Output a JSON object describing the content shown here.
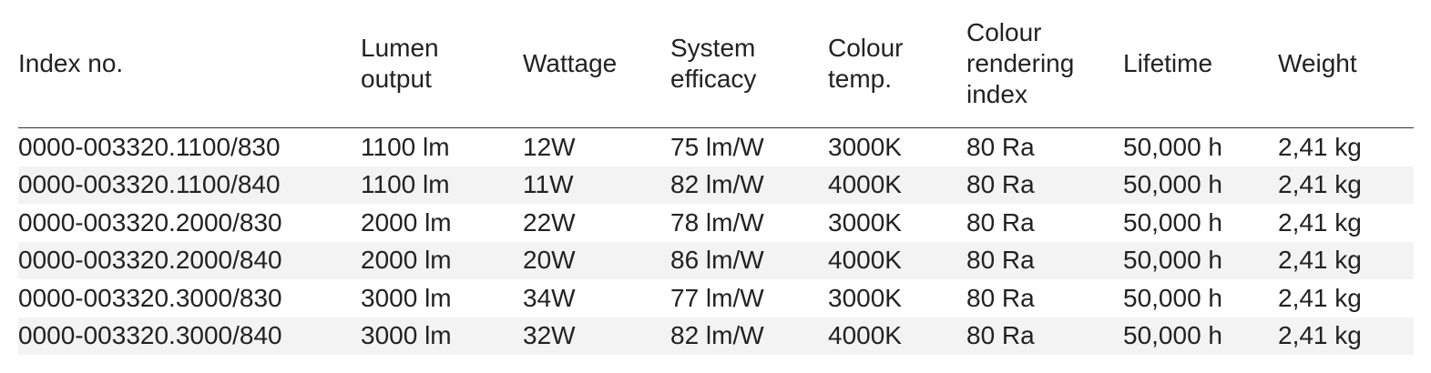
{
  "table": {
    "headers": [
      [
        "Index no."
      ],
      [
        "Lumen",
        "output"
      ],
      [
        "Wattage"
      ],
      [
        "System",
        "efficacy"
      ],
      [
        "Colour",
        "temp."
      ],
      [
        "Colour",
        "rendering",
        "index"
      ],
      [
        "Lifetime"
      ],
      [
        "Weight"
      ]
    ],
    "rows": [
      [
        "0000-003320.1100/830",
        "1100 lm",
        "12W",
        "75 lm/W",
        "3000K",
        "80 Ra",
        "50,000 h",
        "2,41 kg"
      ],
      [
        "0000-003320.1100/840",
        "1100 lm",
        "11W",
        "82 lm/W",
        "4000K",
        "80 Ra",
        "50,000 h",
        "2,41 kg"
      ],
      [
        "0000-003320.2000/830",
        "2000 lm",
        "22W",
        "78 lm/W",
        "3000K",
        "80 Ra",
        "50,000 h",
        "2,41 kg"
      ],
      [
        "0000-003320.2000/840",
        "2000 lm",
        "20W",
        "86 lm/W",
        "4000K",
        "80 Ra",
        "50,000 h",
        "2,41 kg"
      ],
      [
        "0000-003320.3000/830",
        "3000 lm",
        "34W",
        "77 lm/W",
        "3000K",
        "80 Ra",
        "50,000 h",
        "2,41 kg"
      ],
      [
        "0000-003320.3000/840",
        "3000 lm",
        "32W",
        "82 lm/W",
        "4000K",
        "80 Ra",
        "50,000 h",
        "2,41 kg"
      ]
    ]
  },
  "colors": {
    "text": "#222222",
    "stripe": "#f3f3f3",
    "rule": "#333333"
  }
}
